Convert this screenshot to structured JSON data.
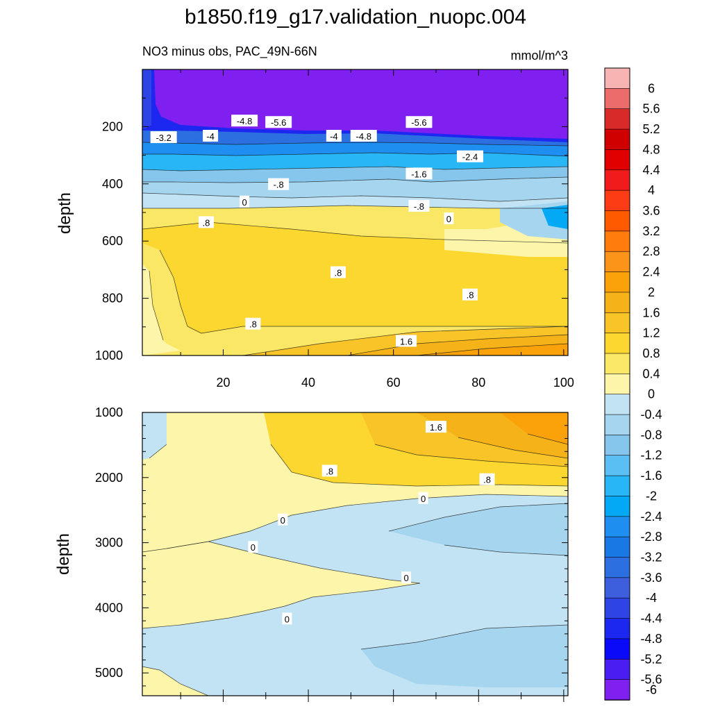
{
  "title": "b1850.f19_g17.validation_nuopc.004",
  "subtitle_left": "NO3 minus obs, PAC_49N-66N",
  "subtitle_right": "mmol/m^3",
  "chart_data": [
    {
      "type": "heatmap",
      "panel": "upper",
      "title": "NO3 minus obs, PAC_49N-66N",
      "units": "mmol/m^3",
      "xlabel": "",
      "ylabel": "depth",
      "xlim": [
        1,
        101
      ],
      "ylim": [
        1000,
        0
      ],
      "xticks": [
        "20",
        "40",
        "60",
        "80",
        "100"
      ],
      "yticks": [
        "200",
        "400",
        "600",
        "800",
        "1000"
      ],
      "ytick_values": [
        200,
        400,
        600,
        800,
        1000
      ],
      "xtick_values": [
        20,
        40,
        60,
        80,
        100
      ],
      "contour_labels": [
        {
          "text": "-4.8",
          "x": 25,
          "y": 180
        },
        {
          "text": "-5.6",
          "x": 33,
          "y": 185
        },
        {
          "text": "-3.2",
          "x": 6,
          "y": 238
        },
        {
          "text": "-4",
          "x": 17,
          "y": 233
        },
        {
          "text": "-4",
          "x": 46,
          "y": 233
        },
        {
          "text": "-4.8",
          "x": 53,
          "y": 233
        },
        {
          "text": "-5.6",
          "x": 66,
          "y": 185
        },
        {
          "text": "-2.4",
          "x": 78,
          "y": 305
        },
        {
          "text": "-.8",
          "x": 33,
          "y": 402
        },
        {
          "text": "-1.6",
          "x": 66,
          "y": 365
        },
        {
          "text": "0",
          "x": 25,
          "y": 463
        },
        {
          "text": "-.8",
          "x": 66,
          "y": 478
        },
        {
          "text": "0",
          "x": 73,
          "y": 522
        },
        {
          "text": ".8",
          "x": 16,
          "y": 535
        },
        {
          "text": ".8",
          "x": 47,
          "y": 710
        },
        {
          "text": ".8",
          "x": 78,
          "y": 788
        },
        {
          "text": ".8",
          "x": 27,
          "y": 890
        },
        {
          "text": "1.6",
          "x": 63,
          "y": 950
        }
      ]
    },
    {
      "type": "heatmap",
      "panel": "lower",
      "xlabel": "",
      "ylabel": "depth",
      "xlim": [
        1,
        101
      ],
      "ylim": [
        5350,
        1000
      ],
      "yticks": [
        "1000",
        "2000",
        "3000",
        "4000",
        "5000"
      ],
      "ytick_values": [
        1000,
        2000,
        3000,
        4000,
        5000
      ],
      "contour_labels": [
        {
          "text": "1.6",
          "x": 70,
          "y": 1225
        },
        {
          "text": ".8",
          "x": 45,
          "y": 1900
        },
        {
          "text": ".8",
          "x": 82,
          "y": 2030
        },
        {
          "text": "0",
          "x": 67,
          "y": 2320
        },
        {
          "text": "0",
          "x": 34,
          "y": 2650
        },
        {
          "text": "0",
          "x": 27,
          "y": 3070
        },
        {
          "text": "0",
          "x": 63,
          "y": 3540
        },
        {
          "text": "0",
          "x": 35,
          "y": 4170
        }
      ]
    }
  ],
  "colorbar": {
    "labels": [
      "6",
      "5.6",
      "5.2",
      "4.8",
      "4.4",
      "4",
      "3.6",
      "3.2",
      "2.8",
      "2.4",
      "2",
      "1.6",
      "1.2",
      "0.8",
      "0.4",
      "0",
      "-0.4",
      "-0.8",
      "-1.2",
      "-1.6",
      "-2",
      "-2.4",
      "-2.8",
      "-3.2",
      "-3.6",
      "-4",
      "-4.4",
      "-4.8",
      "-5.2",
      "-5.6",
      "-6"
    ],
    "colors": [
      "#f8b3b3",
      "#ec6b6b",
      "#d92a2a",
      "#d00000",
      "#e00000",
      "#f21b1b",
      "#fc3c14",
      "#ff5a00",
      "#ff7c0d",
      "#fc9419",
      "#fba10a",
      "#f6b219",
      "#f8c428",
      "#fbd730",
      "#fbe766",
      "#fdf6aa",
      "#c2e3f4",
      "#a6d6ef",
      "#86c6ec",
      "#5abff2",
      "#29b6f6",
      "#03a9f4",
      "#1e8ef0",
      "#1a78e5",
      "#2b6fe0",
      "#3d5fdd",
      "#2f44e4",
      "#1c27f0",
      "#0a0af8",
      "#4a1ef2",
      "#8020f0"
    ]
  }
}
